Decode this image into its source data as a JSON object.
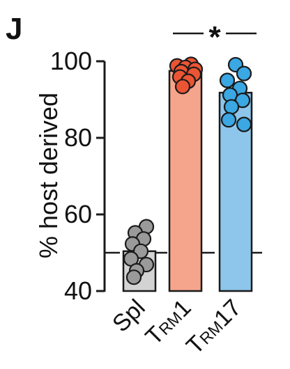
{
  "panel_label": "J",
  "chart_data": {
    "type": "bar",
    "ylabel": "% host derived",
    "xlabel": "",
    "title": "",
    "ylim": [
      40,
      100
    ],
    "yticks": [
      40,
      60,
      80,
      100
    ],
    "reference_line": 50,
    "categories": [
      {
        "main": "Spl",
        "sub": "",
        "suffix": ""
      },
      {
        "main": "T",
        "sub": "RM",
        "suffix": "1"
      },
      {
        "main": "T",
        "sub": "RM",
        "suffix": "17"
      }
    ],
    "values": [
      50.4,
      97.5,
      91.8
    ],
    "colors": {
      "bar_fills": [
        "#d3d3d3",
        "#f4a58c",
        "#8ec5ea"
      ],
      "point_fills": [
        "#9a9a9a",
        "#eb5534",
        "#3ba7e3"
      ],
      "stroke": "#1a1a1a"
    },
    "points": [
      [
        56.8,
        55.2,
        53.6,
        52.3,
        50.4,
        48.4,
        46.9,
        45.3,
        43.6
      ],
      [
        99.2,
        98.8,
        98.4,
        97.9,
        97.3,
        96.6,
        95.9,
        94.8,
        93.4
      ],
      [
        99.1,
        96.8,
        95.0,
        92.9,
        91.2,
        89.8,
        88.1,
        84.7,
        83.5
      ]
    ],
    "significance": {
      "from": 1,
      "to": 2,
      "label": "*"
    }
  }
}
